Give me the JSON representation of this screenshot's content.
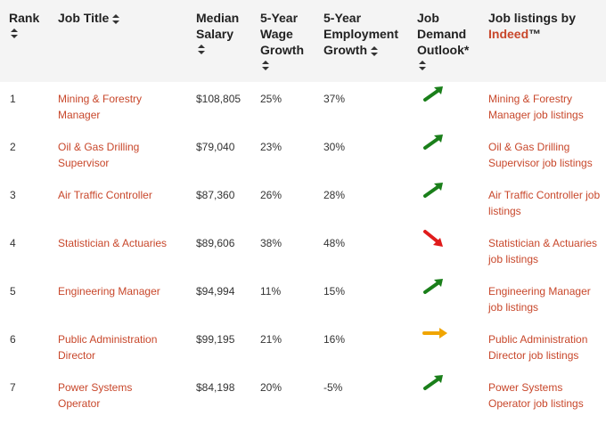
{
  "table": {
    "headers": {
      "rank": "Rank",
      "title": "Job Title",
      "salary_l1": "Median",
      "salary_l2": "Salary",
      "wage_l1": "5-Year",
      "wage_l2": "Wage",
      "wage_l3": "Growth",
      "emp_l1": "5-Year",
      "emp_l2": "Employment",
      "emp_l3": "Growth",
      "demand_l1": "Job",
      "demand_l2": "Demand",
      "demand_l3": "Outlook*",
      "listings_l1": "Job listings by",
      "listings_brand": "Indeed",
      "listings_tm": "™"
    },
    "rows": [
      {
        "rank": "1",
        "title_l1": "Mining & Forestry",
        "title_l2": "Manager",
        "salary": "$108,805",
        "wage": "25%",
        "emp": "37%",
        "outlook": "up",
        "listing_l1": "Mining & Forestry",
        "listing_l2": "Manager job listings"
      },
      {
        "rank": "2",
        "title_l1": "Oil & Gas Drilling",
        "title_l2": "Supervisor",
        "salary": "$79,040",
        "wage": "23%",
        "emp": "30%",
        "outlook": "up",
        "listing_l1": "Oil & Gas Drilling",
        "listing_l2": "Supervisor job listings"
      },
      {
        "rank": "3",
        "title_l1": "Air Traffic Controller",
        "title_l2": "",
        "salary": "$87,360",
        "wage": "26%",
        "emp": "28%",
        "outlook": "up",
        "listing_l1": "Air Traffic Controller job",
        "listing_l2": "listings"
      },
      {
        "rank": "4",
        "title_l1": "Statistician & Actuaries",
        "title_l2": "",
        "salary": "$89,606",
        "wage": "38%",
        "emp": "48%",
        "outlook": "down",
        "listing_l1": "Statistician & Actuaries",
        "listing_l2": "job listings"
      },
      {
        "rank": "5",
        "title_l1": "Engineering Manager",
        "title_l2": "",
        "salary": "$94,994",
        "wage": "11%",
        "emp": "15%",
        "outlook": "up",
        "listing_l1": "Engineering Manager",
        "listing_l2": "job listings"
      },
      {
        "rank": "6",
        "title_l1": "Public Administration",
        "title_l2": "Director",
        "salary": "$99,195",
        "wage": "21%",
        "emp": "16%",
        "outlook": "flat",
        "listing_l1": "Public Administration",
        "listing_l2": "Director job listings"
      },
      {
        "rank": "7",
        "title_l1": "Power Systems",
        "title_l2": "Operator",
        "salary": "$84,198",
        "wage": "20%",
        "emp": "-5%",
        "outlook": "up",
        "listing_l1": "Power Systems",
        "listing_l2": "Operator job listings"
      }
    ]
  },
  "colors": {
    "outlook_up": "#1a7f1a",
    "outlook_down": "#e01b1b",
    "outlook_flat": "#f0a500",
    "link": "#c8472b"
  },
  "icons": {
    "up": "arrow-up-right-icon",
    "down": "arrow-down-right-icon",
    "flat": "arrow-right-icon"
  }
}
